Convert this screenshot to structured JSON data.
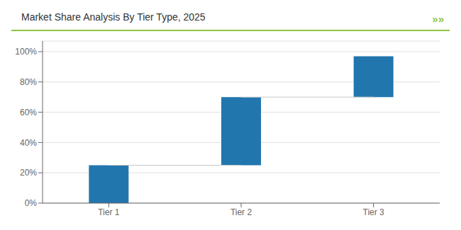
{
  "chart_data": {
    "type": "waterfall",
    "title": "Market Share Analysis By Tier Type, 2025",
    "annotations": [
      "»»"
    ],
    "categories": [
      "Tier 1",
      "Tier 2",
      "Tier 3"
    ],
    "values": [
      25,
      45,
      27
    ],
    "color": "#2176AE",
    "ylim": [
      0,
      107
    ],
    "yticks": [
      {
        "value": 0,
        "label": "0%"
      },
      {
        "value": 20,
        "label": "20%"
      },
      {
        "value": 40,
        "label": "40%"
      },
      {
        "value": 60,
        "label": "60%"
      },
      {
        "value": 80,
        "label": "80%"
      },
      {
        "value": 100,
        "label": "100%"
      }
    ],
    "grid": true
  }
}
